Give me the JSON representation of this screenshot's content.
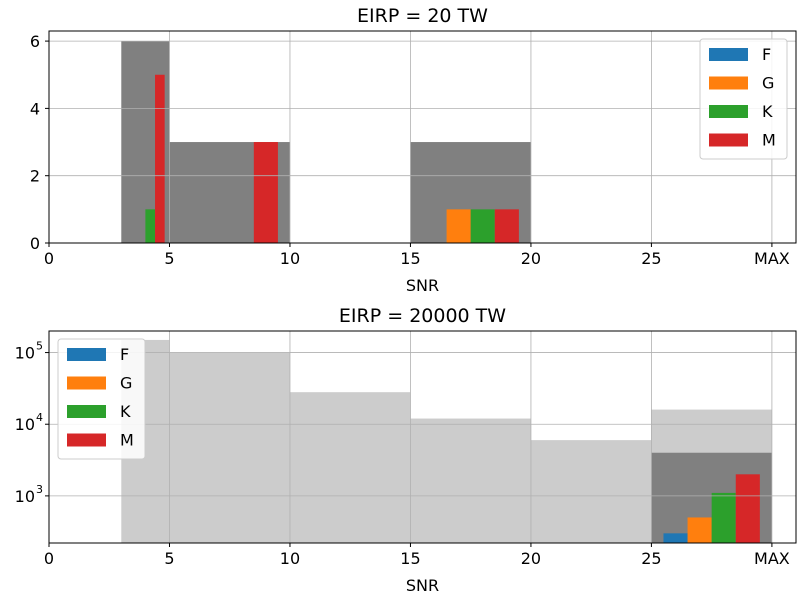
{
  "chart_data": [
    {
      "type": "bar",
      "title": "EIRP = 20 TW",
      "xlabel": "SNR",
      "ylabel": "",
      "xlim": [
        0,
        31
      ],
      "ylim": [
        0,
        6.3
      ],
      "yscale": "linear",
      "xticks": [
        0,
        5,
        10,
        15,
        20,
        25,
        30
      ],
      "xticklabels": [
        "0",
        "5",
        "10",
        "15",
        "20",
        "25",
        "MAX"
      ],
      "yticks": [
        0,
        2,
        4,
        6
      ],
      "yticklabels": [
        "0",
        "2",
        "4",
        "6"
      ],
      "grid": true,
      "legend_position": "top-right",
      "background_bins": [
        {
          "x0": 3,
          "x1": 5,
          "value": 6,
          "color": "#808080"
        },
        {
          "x0": 5,
          "x1": 10,
          "value": 3,
          "color": "#808080"
        },
        {
          "x0": 15,
          "x1": 20,
          "value": 3,
          "color": "#808080"
        }
      ],
      "series": [
        {
          "name": "F",
          "color": "#1f77b4",
          "bars": []
        },
        {
          "name": "G",
          "color": "#ff7f0e",
          "bars": [
            {
              "x0": 16.5,
              "x1": 17.5,
              "value": 1
            }
          ]
        },
        {
          "name": "K",
          "color": "#2ca02c",
          "bars": [
            {
              "x0": 4.0,
              "x1": 4.4,
              "value": 1
            },
            {
              "x0": 17.5,
              "x1": 18.5,
              "value": 1
            }
          ]
        },
        {
          "name": "M",
          "color": "#d62728",
          "bars": [
            {
              "x0": 4.4,
              "x1": 4.8,
              "value": 5
            },
            {
              "x0": 8.5,
              "x1": 9.5,
              "value": 3
            },
            {
              "x0": 18.5,
              "x1": 19.5,
              "value": 1
            }
          ]
        }
      ]
    },
    {
      "type": "bar",
      "title": "EIRP = 20000 TW",
      "xlabel": "SNR",
      "ylabel": "",
      "xlim": [
        0,
        31
      ],
      "ylim": [
        220,
        200000
      ],
      "yscale": "log",
      "xticks": [
        0,
        5,
        10,
        15,
        20,
        25,
        30
      ],
      "xticklabels": [
        "0",
        "5",
        "10",
        "15",
        "20",
        "25",
        "MAX"
      ],
      "yticks": [
        1000,
        10000,
        100000
      ],
      "yticklabels": [
        "10",
        "10",
        "10"
      ],
      "yticksup": [
        "3",
        "4",
        "5"
      ],
      "grid": true,
      "legend_position": "top-left",
      "background_bins": [
        {
          "x0": 3,
          "x1": 5,
          "value": 150000,
          "color": "#cccccc"
        },
        {
          "x0": 5,
          "x1": 10,
          "value": 100000,
          "color": "#cccccc"
        },
        {
          "x0": 10,
          "x1": 15,
          "value": 28000,
          "color": "#cccccc"
        },
        {
          "x0": 15,
          "x1": 20,
          "value": 12000,
          "color": "#cccccc"
        },
        {
          "x0": 20,
          "x1": 25,
          "value": 6000,
          "color": "#cccccc"
        },
        {
          "x0": 25,
          "x1": 30,
          "value": 16000,
          "color": "#cccccc"
        },
        {
          "x0": 25,
          "x1": 30,
          "value": 4000,
          "color": "#808080"
        }
      ],
      "series": [
        {
          "name": "F",
          "color": "#1f77b4",
          "bars": [
            {
              "x0": 25.5,
              "x1": 26.5,
              "value": 300
            }
          ]
        },
        {
          "name": "G",
          "color": "#ff7f0e",
          "bars": [
            {
              "x0": 26.5,
              "x1": 27.5,
              "value": 500
            }
          ]
        },
        {
          "name": "K",
          "color": "#2ca02c",
          "bars": [
            {
              "x0": 27.5,
              "x1": 28.5,
              "value": 1100
            }
          ]
        },
        {
          "name": "M",
          "color": "#d62728",
          "bars": [
            {
              "x0": 28.5,
              "x1": 29.5,
              "value": 2000
            }
          ]
        }
      ]
    }
  ]
}
